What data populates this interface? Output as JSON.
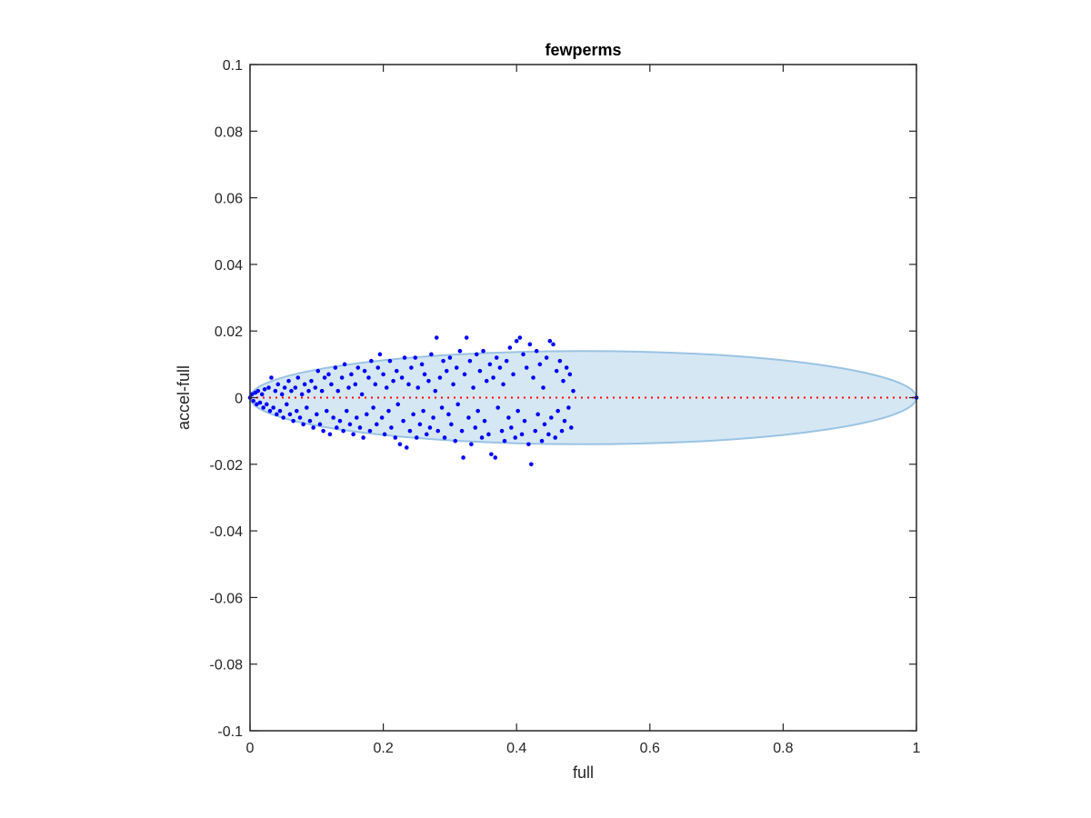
{
  "chart_data": {
    "type": "scatter",
    "title": "fewperms",
    "xlabel": "full",
    "ylabel": "accel-full",
    "xlim": [
      0,
      1
    ],
    "ylim": [
      -0.1,
      0.1
    ],
    "xticks": [
      0,
      0.2,
      0.4,
      0.6,
      0.8,
      1
    ],
    "xtick_labels": [
      "0",
      "0.2",
      "0.4",
      "0.6",
      "0.8",
      "1"
    ],
    "yticks": [
      -0.1,
      -0.08,
      -0.06,
      -0.04,
      -0.02,
      0,
      0.02,
      0.04,
      0.06,
      0.08,
      0.1
    ],
    "ytick_labels": [
      "-0.1",
      "-0.08",
      "-0.06",
      "-0.04",
      "-0.02",
      "0",
      "0.02",
      "0.04",
      "0.06",
      "0.08",
      "0.1"
    ],
    "grid": false,
    "ellipse": {
      "cx": 0.5,
      "cy": 0,
      "rx": 0.5,
      "ry": 0.014
    },
    "reference_line": {
      "y": 0,
      "from": 0,
      "to": 1
    },
    "series": [
      {
        "values": [
          [
            0,
            0
          ],
          [
            0.003,
            0.001
          ],
          [
            0.005,
            -0.001
          ],
          [
            0.008,
            0.0015
          ],
          [
            0.01,
            -0.002
          ],
          [
            0.012,
            0.002
          ],
          [
            0.015,
            -0.0015
          ],
          [
            0.018,
            0.001
          ],
          [
            0.02,
            -0.003
          ],
          [
            0.022,
            0.0025
          ],
          [
            0.025,
            -0.002
          ],
          [
            0.028,
            0.003
          ],
          [
            0.03,
            -0.004
          ],
          [
            0.032,
            0.006
          ],
          [
            0.035,
            -0.003
          ],
          [
            0.038,
            0.002
          ],
          [
            0.04,
            -0.005
          ],
          [
            0.042,
            0.004
          ],
          [
            0.045,
            -0.004
          ],
          [
            0.048,
            0.001
          ],
          [
            0.05,
            -0.006
          ],
          [
            0.052,
            0.003
          ],
          [
            0.055,
            -0.002
          ],
          [
            0.058,
            0.005
          ],
          [
            0.06,
            -0.005
          ],
          [
            0.062,
            0.002
          ],
          [
            0.065,
            -0.007
          ],
          [
            0.068,
            0.003
          ],
          [
            0.07,
            -0.004
          ],
          [
            0.072,
            0.006
          ],
          [
            0.075,
            -0.006
          ],
          [
            0.078,
            0.001
          ],
          [
            0.08,
            -0.008
          ],
          [
            0.082,
            0.004
          ],
          [
            0.085,
            -0.003
          ],
          [
            0.088,
            0.002
          ],
          [
            0.09,
            -0.007
          ],
          [
            0.092,
            0.005
          ],
          [
            0.095,
            -0.009
          ],
          [
            0.098,
            0.003
          ],
          [
            0.1,
            -0.005
          ],
          [
            0.102,
            0.008
          ],
          [
            0.105,
            -0.008
          ],
          [
            0.108,
            0.002
          ],
          [
            0.11,
            -0.01
          ],
          [
            0.112,
            0.006
          ],
          [
            0.115,
            -0.004
          ],
          [
            0.118,
            0.007
          ],
          [
            0.12,
            -0.011
          ],
          [
            0.122,
            0.004
          ],
          [
            0.125,
            -0.006
          ],
          [
            0.128,
            0.009
          ],
          [
            0.13,
            -0.009
          ],
          [
            0.132,
            0.002
          ],
          [
            0.135,
            -0.007
          ],
          [
            0.138,
            0.006
          ],
          [
            0.14,
            -0.01
          ],
          [
            0.142,
            0.01
          ],
          [
            0.145,
            -0.004
          ],
          [
            0.148,
            0.003
          ],
          [
            0.15,
            -0.008
          ],
          [
            0.152,
            0.007
          ],
          [
            0.155,
            -0.011
          ],
          [
            0.158,
            0.004
          ],
          [
            0.16,
            -0.006
          ],
          [
            0.162,
            0.009
          ],
          [
            0.165,
            -0.009
          ],
          [
            0.168,
            0.001
          ],
          [
            0.17,
            -0.012
          ],
          [
            0.172,
            0.008
          ],
          [
            0.175,
            -0.005
          ],
          [
            0.178,
            0.006
          ],
          [
            0.18,
            -0.01
          ],
          [
            0.182,
            0.011
          ],
          [
            0.185,
            -0.003
          ],
          [
            0.188,
            0.004
          ],
          [
            0.19,
            -0.008
          ],
          [
            0.192,
            0.009
          ],
          [
            0.195,
            0.013
          ],
          [
            0.198,
            -0.006
          ],
          [
            0.2,
            0.007
          ],
          [
            0.202,
            -0.011
          ],
          [
            0.205,
            0.003
          ],
          [
            0.208,
            -0.004
          ],
          [
            0.21,
            0.011
          ],
          [
            0.212,
            -0.009
          ],
          [
            0.215,
            0.005
          ],
          [
            0.218,
            -0.012
          ],
          [
            0.22,
            0.008
          ],
          [
            0.222,
            -0.002
          ],
          [
            0.225,
            -0.014
          ],
          [
            0.228,
            0.006
          ],
          [
            0.23,
            -0.007
          ],
          [
            0.232,
            0.012
          ],
          [
            0.235,
            -0.015
          ],
          [
            0.238,
            0.004
          ],
          [
            0.24,
            -0.01
          ],
          [
            0.242,
            0.009
          ],
          [
            0.245,
            -0.005
          ],
          [
            0.248,
            0.012
          ],
          [
            0.25,
            -0.012
          ],
          [
            0.252,
            0.003
          ],
          [
            0.255,
            -0.008
          ],
          [
            0.258,
            0.01
          ],
          [
            0.26,
            -0.004
          ],
          [
            0.262,
            0.007
          ],
          [
            0.265,
            -0.011
          ],
          [
            0.268,
            0.005
          ],
          [
            0.27,
            -0.009
          ],
          [
            0.272,
            0.013
          ],
          [
            0.275,
            -0.006
          ],
          [
            0.278,
            0.002
          ],
          [
            0.28,
            0.018
          ],
          [
            0.282,
            -0.01
          ],
          [
            0.285,
            0.006
          ],
          [
            0.288,
            -0.003
          ],
          [
            0.29,
            0.011
          ],
          [
            0.292,
            -0.012
          ],
          [
            0.295,
            0.008
          ],
          [
            0.298,
            -0.005
          ],
          [
            0.3,
            0.012
          ],
          [
            0.302,
            -0.008
          ],
          [
            0.305,
            0.004
          ],
          [
            0.308,
            -0.013
          ],
          [
            0.31,
            0.009
          ],
          [
            0.312,
            -0.002
          ],
          [
            0.315,
            0.014
          ],
          [
            0.318,
            -0.01
          ],
          [
            0.32,
            -0.018
          ],
          [
            0.322,
            0.007
          ],
          [
            0.325,
            0.018
          ],
          [
            0.328,
            -0.006
          ],
          [
            0.33,
            0.011
          ],
          [
            0.332,
            -0.014
          ],
          [
            0.335,
            0.003
          ],
          [
            0.338,
            -0.009
          ],
          [
            0.34,
            0.013
          ],
          [
            0.342,
            -0.004
          ],
          [
            0.345,
            0.008
          ],
          [
            0.348,
            -0.012
          ],
          [
            0.35,
            0.014
          ],
          [
            0.352,
            -0.007
          ],
          [
            0.355,
            0.005
          ],
          [
            0.358,
            -0.011
          ],
          [
            0.36,
            0.01
          ],
          [
            0.362,
            -0.017
          ],
          [
            0.365,
            0.006
          ],
          [
            0.368,
            -0.018
          ],
          [
            0.37,
            0.012
          ],
          [
            0.372,
            -0.003
          ],
          [
            0.375,
            0.009
          ],
          [
            0.378,
            -0.01
          ],
          [
            0.38,
            0.004
          ],
          [
            0.382,
            -0.013
          ],
          [
            0.385,
            0.011
          ],
          [
            0.388,
            -0.006
          ],
          [
            0.39,
            0.015
          ],
          [
            0.392,
            -0.009
          ],
          [
            0.395,
            0.007
          ],
          [
            0.398,
            -0.012
          ],
          [
            0.4,
            0.017
          ],
          [
            0.402,
            -0.004
          ],
          [
            0.405,
            0.018
          ],
          [
            0.408,
            -0.011
          ],
          [
            0.41,
            0.013
          ],
          [
            0.412,
            -0.007
          ],
          [
            0.415,
            0.009
          ],
          [
            0.418,
            -0.014
          ],
          [
            0.42,
            0.016
          ],
          [
            0.422,
            -0.02
          ],
          [
            0.425,
            0.006
          ],
          [
            0.428,
            -0.01
          ],
          [
            0.43,
            0.014
          ],
          [
            0.432,
            -0.005
          ],
          [
            0.435,
            0.01
          ],
          [
            0.438,
            -0.013
          ],
          [
            0.44,
            0.003
          ],
          [
            0.442,
            -0.008
          ],
          [
            0.445,
            0.012
          ],
          [
            0.448,
            -0.011
          ],
          [
            0.45,
            0.017
          ],
          [
            0.452,
            -0.006
          ],
          [
            0.455,
            0.016
          ],
          [
            0.458,
            -0.012
          ],
          [
            0.46,
            0.008
          ],
          [
            0.462,
            -0.004
          ],
          [
            0.465,
            0.011
          ],
          [
            0.468,
            -0.01
          ],
          [
            0.47,
            0.005
          ],
          [
            0.472,
            -0.007
          ],
          [
            0.475,
            0.009
          ],
          [
            0.478,
            -0.003
          ],
          [
            0.48,
            0.007
          ],
          [
            0.482,
            -0.009
          ],
          [
            0.485,
            0.002
          ],
          [
            1,
            0
          ]
        ]
      }
    ],
    "colors": {
      "points": "#0000ff",
      "ellipse_fill": "#d6e7f4",
      "ellipse_stroke": "#9ac3e3",
      "reference_line": "#ff0000",
      "axes": "#262626"
    }
  }
}
